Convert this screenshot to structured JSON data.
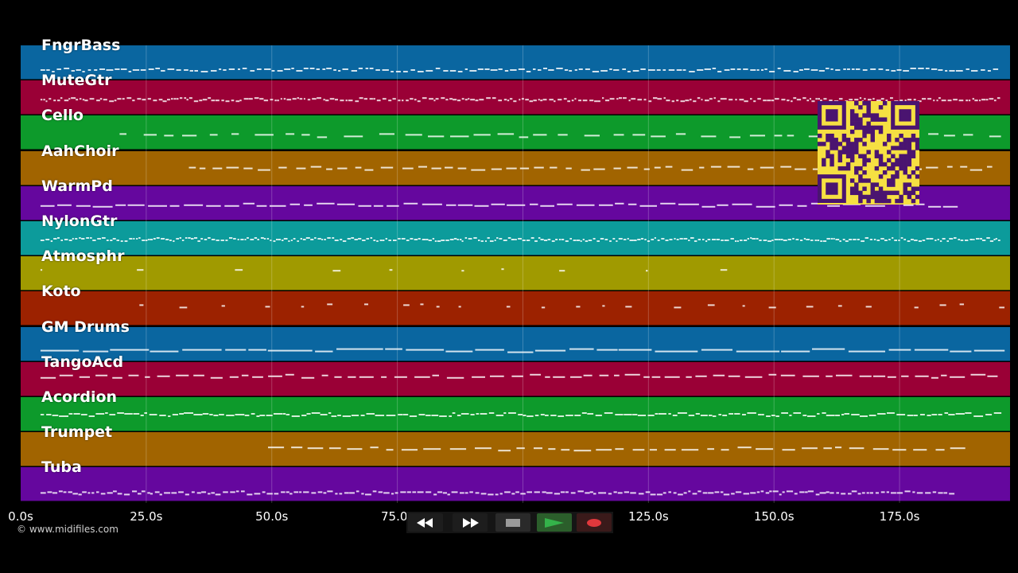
{
  "tracks": [
    {
      "name": "FngrBass",
      "color": "#0a66a0"
    },
    {
      "name": "MuteGtr",
      "color": "#9a0036"
    },
    {
      "name": "Cello",
      "color": "#0d9a2b"
    },
    {
      "name": "AahChoir",
      "color": "#a16400"
    },
    {
      "name": "WarmPd",
      "color": "#65079e"
    },
    {
      "name": "NylonGtr",
      "color": "#0c9b9b"
    },
    {
      "name": "Atmosphr",
      "color": "#a09a00"
    },
    {
      "name": "Koto",
      "color": "#9c2200"
    },
    {
      "name": "GM Drums",
      "color": "#0a66a0"
    },
    {
      "name": "TangoAcd",
      "color": "#9a0036"
    },
    {
      "name": "Acordion",
      "color": "#0d9a2b"
    },
    {
      "name": "Trumpet",
      "color": "#a16400"
    },
    {
      "name": "Tuba",
      "color": "#65079e"
    }
  ],
  "time_axis": {
    "ticks": [
      "0.0s",
      "25.0s",
      "50.0s",
      "75.0s",
      "125.0s",
      "150.0s",
      "175.0s"
    ],
    "tick_seconds": [
      0,
      25,
      50,
      75,
      125,
      150,
      175
    ],
    "gridline_seconds": [
      25,
      50,
      75,
      100,
      125,
      150,
      175
    ],
    "end_seconds": 197
  },
  "copyright": "© www.midifiles.com",
  "controls": {
    "rewind_icon": "rewind-icon",
    "fast_forward_icon": "fast-forward-icon",
    "stop_icon": "stop-icon",
    "play_icon": "play-icon",
    "record_icon": "record-icon",
    "play_color": "#2e9a2e",
    "record_color": "#e0383c"
  },
  "qr_colors": {
    "fg": "#4a1470",
    "bg": "#f6e042"
  }
}
